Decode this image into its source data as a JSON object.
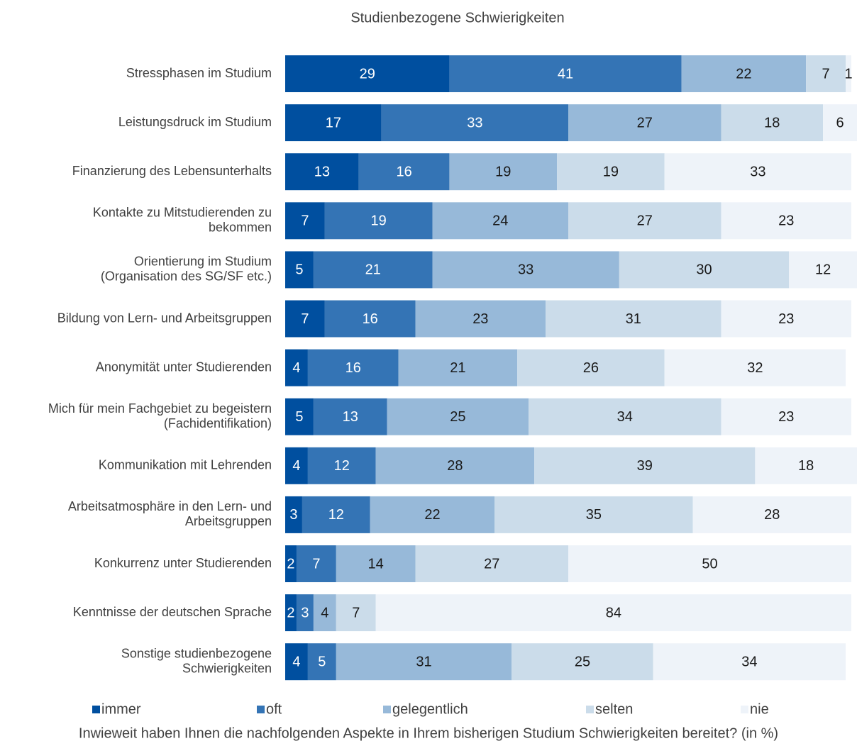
{
  "chart_data": {
    "type": "stacked_bar_horizontal",
    "title": "Studienbezogene Schwierigkeiten",
    "caption": "Inwieweit haben Ihnen die nachfolgenden Aspekte in Ihrem bisherigen Studium Schwierigkeiten bereitet? (in %)",
    "categories": [
      [
        "Stressphasen im Studium"
      ],
      [
        "Leistungsdruck im Studium"
      ],
      [
        "Finanzierung des Lebensunterhalts"
      ],
      [
        "Kontakte zu Mitstudierenden zu",
        "bekommen"
      ],
      [
        "Orientierung im Studium",
        "(Organisation des SG/SF etc.)"
      ],
      [
        "Bildung von Lern- und Arbeitsgruppen"
      ],
      [
        "Anonymität unter Studierenden"
      ],
      [
        "Mich für mein Fachgebiet zu begeistern",
        "(Fachidentifikation)"
      ],
      [
        "Kommunikation mit Lehrenden"
      ],
      [
        "Arbeitsatmosphäre in den Lern- und",
        "Arbeitsgruppen"
      ],
      [
        "Konkurrenz unter Studierenden"
      ],
      [
        "Kenntnisse der deutschen Sprache"
      ],
      [
        "Sonstige studienbezogene",
        "Schwierigkeiten"
      ]
    ],
    "series": [
      {
        "name": "immer",
        "color": "#004f9f",
        "values": [
          29,
          17,
          13,
          7,
          5,
          7,
          4,
          5,
          4,
          3,
          2,
          2,
          4
        ]
      },
      {
        "name": "oft",
        "color": "#3474b5",
        "values": [
          41,
          33,
          16,
          19,
          21,
          16,
          16,
          13,
          12,
          12,
          7,
          3,
          5
        ]
      },
      {
        "name": "gelegentlich",
        "color": "#97b9d9",
        "values": [
          22,
          27,
          19,
          24,
          33,
          23,
          21,
          25,
          28,
          22,
          14,
          4,
          31
        ]
      },
      {
        "name": "selten",
        "color": "#cbdcea",
        "values": [
          7,
          18,
          19,
          27,
          30,
          31,
          26,
          34,
          39,
          35,
          27,
          7,
          25
        ]
      },
      {
        "name": "nie",
        "color": "#eef3f9",
        "values": [
          1,
          6,
          33,
          23,
          12,
          23,
          32,
          23,
          18,
          28,
          50,
          84,
          34
        ]
      }
    ],
    "legend": "bottom"
  }
}
